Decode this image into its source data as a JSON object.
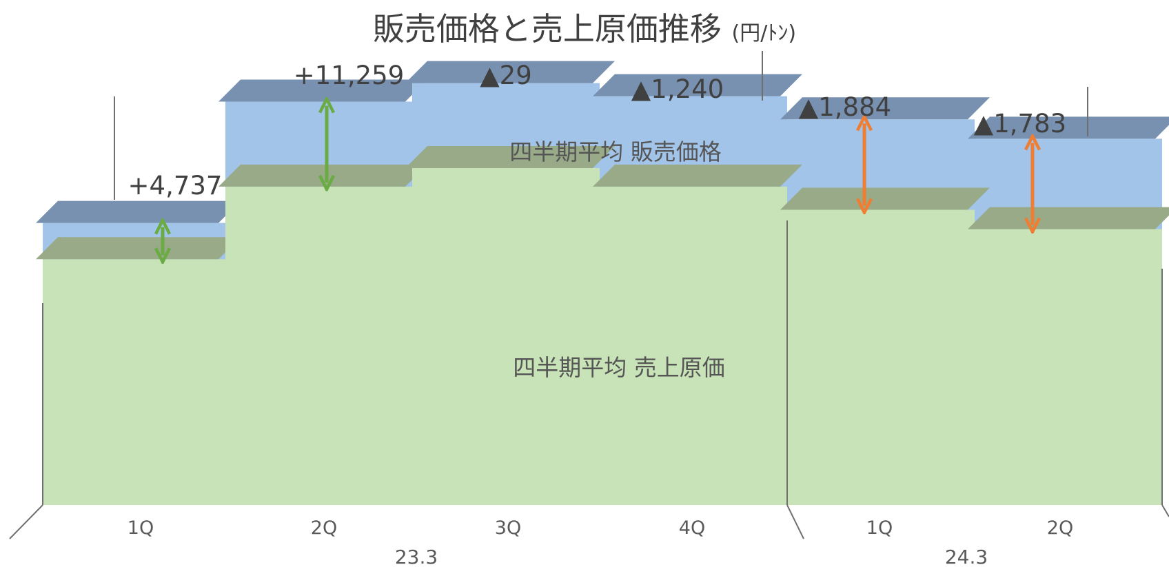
{
  "title": "販売価格と売上原価推移",
  "unit": "(円/ﾄﾝ)",
  "chart_data": {
    "type": "area",
    "title": "販売価格と売上原価推移",
    "unit": "(円/ﾄﾝ)",
    "groups": [
      "23.3",
      "24.3"
    ],
    "categories": [
      {
        "group": "23.3",
        "label": "1Q"
      },
      {
        "group": "23.3",
        "label": "2Q"
      },
      {
        "group": "23.3",
        "label": "3Q"
      },
      {
        "group": "23.3",
        "label": "4Q"
      },
      {
        "group": "24.3",
        "label": "1Q"
      },
      {
        "group": "24.3",
        "label": "2Q"
      }
    ],
    "series": [
      {
        "name": "四半期平均 販売価格",
        "color": "#a2c4e9",
        "top_color": "#7891b1",
        "values": [
          36500,
          52200,
          54600,
          52900,
          49900,
          47400
        ]
      },
      {
        "name": "四半期平均 売上原価",
        "color": "#c8e3b8",
        "top_color": "#98aa88",
        "values": [
          31800,
          41200,
          43600,
          41200,
          38200,
          35700
        ]
      }
    ],
    "spread_labels": [
      "+4,737",
      "+11,259",
      "▲29",
      "▲1,240",
      "▲1,884",
      "▲1,783"
    ],
    "arrow_colors": [
      "#6aab43",
      "#6aab43",
      null,
      null,
      "#ef7d32",
      "#ef7d32"
    ],
    "ylim": [
      0,
      60000
    ],
    "grid": false
  }
}
